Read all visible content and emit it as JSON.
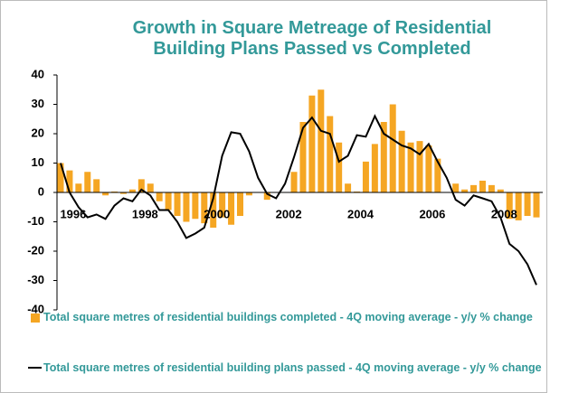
{
  "chart_data": {
    "type": "bar_line",
    "title": "Growth in Square Metreage of Residential Building Plans Passed vs Completed",
    "categories": [
      null,
      "1996",
      null,
      null,
      null,
      null,
      null,
      null,
      null,
      "1998",
      null,
      null,
      null,
      null,
      null,
      null,
      null,
      "2000",
      null,
      null,
      null,
      null,
      null,
      null,
      null,
      "2002",
      null,
      null,
      null,
      null,
      null,
      null,
      null,
      "2004",
      null,
      null,
      null,
      null,
      null,
      null,
      null,
      "2006",
      null,
      null,
      null,
      null,
      null,
      null,
      null,
      "2008",
      null,
      null,
      null,
      null
    ],
    "series": [
      {
        "name": "Total square metres of residential buildings completed - 4Q moving average - y/y % change",
        "type": "bar",
        "color": "#f5a623",
        "values": [
          10,
          7.5,
          3,
          7,
          4.5,
          -1,
          0.3,
          -0.5,
          1,
          4.5,
          3,
          -3,
          -6,
          -8,
          -10,
          -9,
          -10.5,
          -12,
          -8.5,
          -11,
          -8,
          -1,
          0,
          -2.5,
          0,
          0,
          7,
          24,
          33,
          35,
          26,
          17,
          3,
          0.3,
          10.5,
          16.5,
          24,
          30,
          21,
          17,
          17.5,
          16,
          11.5,
          0,
          3,
          1,
          2.5,
          4,
          2.5,
          1,
          -9,
          -9.5,
          -8,
          -8.5
        ]
      },
      {
        "name": "Total square metres of residential building plans passed - 4Q moving average -  y/y % change",
        "type": "line",
        "color": "#000000",
        "values": [
          10,
          0,
          -5,
          -8.5,
          -7.5,
          -9,
          -4.5,
          -2,
          -3,
          1,
          -1,
          -6,
          -6,
          -10,
          -15.5,
          -14,
          -12,
          -2,
          12.5,
          20.5,
          20,
          14,
          5,
          -0.5,
          -2,
          3,
          12,
          22,
          25.5,
          21,
          20,
          10.5,
          12.5,
          19.5,
          19,
          26,
          20,
          18,
          16,
          15,
          13,
          16.5,
          10.5,
          5,
          -2.5,
          -4.5,
          -1,
          -2,
          -3,
          -8.5,
          -17.5,
          -20,
          -24.5,
          -31.5
        ]
      }
    ],
    "ylim": [
      -40,
      40
    ],
    "yticks": [
      -40,
      -30,
      -20,
      -10,
      0,
      10,
      20,
      30,
      40
    ],
    "legend": "bottom"
  }
}
